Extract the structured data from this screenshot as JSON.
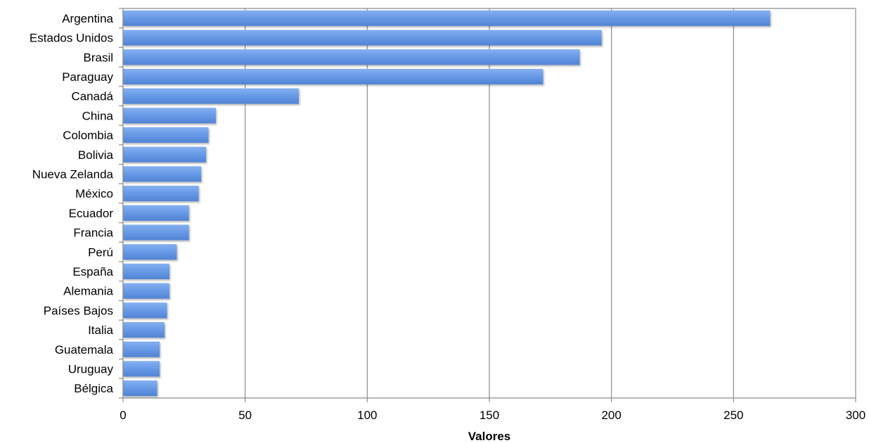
{
  "chart_data": {
    "type": "bar",
    "orientation": "horizontal",
    "categories": [
      "Argentina",
      "Estados Unidos",
      "Brasil",
      "Paraguay",
      "Canadá",
      "China",
      "Colombia",
      "Bolivia",
      "Nueva Zelanda",
      "México",
      "Ecuador",
      "Francia",
      "Perú",
      "España",
      "Alemania",
      "Países Bajos",
      "Italia",
      "Guatemala",
      "Uruguay",
      "Bélgica"
    ],
    "values": [
      265,
      196,
      187,
      172,
      72,
      38,
      35,
      34,
      32,
      31,
      27,
      27,
      22,
      19,
      19,
      18,
      17,
      15,
      15,
      14
    ],
    "xlabel": "Valores",
    "ylabel": "",
    "xlim": [
      0,
      300
    ],
    "xticks": [
      0,
      50,
      100,
      150,
      200,
      250,
      300
    ],
    "grid": "vertical",
    "legend": "none",
    "bar_color": "#6699e6"
  }
}
